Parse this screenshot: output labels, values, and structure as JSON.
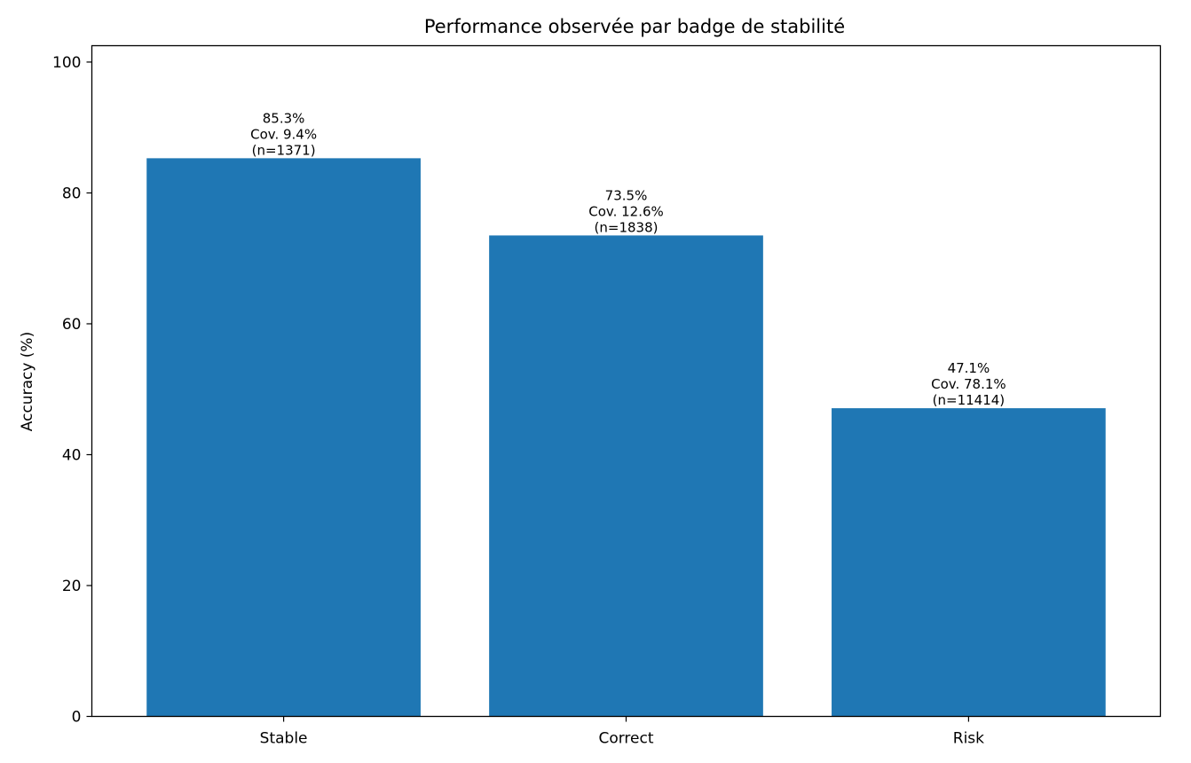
{
  "chart_data": {
    "type": "bar",
    "title": "Performance observée par badge de stabilité",
    "xlabel": "",
    "ylabel": "Accuracy (%)",
    "ylim": [
      0,
      102.5
    ],
    "yticks": [
      0,
      20,
      40,
      60,
      80,
      100
    ],
    "categories": [
      "Stable",
      "Correct",
      "Risk"
    ],
    "values": [
      85.3,
      73.5,
      47.1
    ],
    "bar_color": "#1f77b4",
    "grid": false,
    "data_labels": [
      [
        "85.3%",
        "Cov. 9.4%",
        "(n=1371)"
      ],
      [
        "73.5%",
        "Cov. 12.6%",
        "(n=1838)"
      ],
      [
        "47.1%",
        "Cov. 78.1%",
        "(n=11414)"
      ]
    ]
  }
}
